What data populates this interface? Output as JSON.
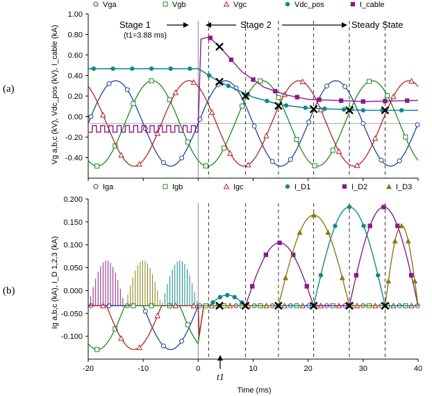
{
  "colors": {
    "phase_a": "#1f3f9e",
    "phase_b": "#1a8a1a",
    "phase_c": "#b02222",
    "vdc": "#0f8a8a",
    "icable": "#8a1a8a",
    "id3": "#8a7a10",
    "grid": "#555555"
  },
  "panels": [
    {
      "label": "(a)",
      "ylabel": "Vg a,b,c (kV), Vdc_pos (kV), I_cable (kA)",
      "annotations": {
        "stage1": "Stage 1",
        "t1_note": "(t1=3.88 ms)",
        "stage2": "Stage 2",
        "steady": "Steady State"
      }
    },
    {
      "label": "(b)",
      "ylabel": "Ig a,b,c (kA), I_D 1,2,3 (kA)",
      "xlabel": "Time (ms)",
      "t1_label": "t1"
    }
  ],
  "chart_data": [
    {
      "type": "line",
      "xlim": [
        -20,
        40
      ],
      "ylim": [
        -0.5,
        1.0
      ],
      "y_ticks": [
        "1.00",
        "0.80",
        "0.60",
        "0.40",
        "0.20",
        "0.00",
        "-0.20",
        "-0.40"
      ],
      "x_ticks": [
        "-20",
        "-10",
        "0",
        "10",
        "20",
        "30",
        "40"
      ],
      "dashed_lines_x": [
        0,
        1.9,
        8.6,
        14.6,
        21.0,
        27.5,
        34.0
      ],
      "legend": "top",
      "series": [
        {
          "name": "Vga",
          "marker": "open-circle",
          "amplitude": 0.39,
          "period_ms": 20,
          "phase_deg": 0
        },
        {
          "name": "Vgb",
          "marker": "open-square",
          "amplitude": 0.39,
          "period_ms": 20,
          "phase_deg": -120
        },
        {
          "name": "Vgc",
          "marker": "open-triangle",
          "amplitude": 0.39,
          "period_ms": 20,
          "phase_deg": 120
        },
        {
          "name": "Vdc_pos",
          "marker": "filled-circle",
          "x": [
            -20,
            0,
            3.88,
            10,
            15,
            20,
            30,
            40
          ],
          "y": [
            0.5,
            0.5,
            0.38,
            0.24,
            0.17,
            0.14,
            0.12,
            0.12
          ]
        },
        {
          "name": "I_cable",
          "marker": "filled-square",
          "x": [
            -20,
            0,
            0.5,
            2,
            3.88,
            8,
            12,
            16,
            20,
            30,
            40
          ],
          "y": [
            -0.05,
            -0.05,
            0.77,
            0.79,
            0.7,
            0.47,
            0.33,
            0.26,
            0.22,
            0.2,
            0.21
          ]
        }
      ],
      "cross_markers": [
        [
          3.88,
          0.7
        ],
        [
          3.88,
          0.38
        ],
        [
          8.6,
          0.25
        ],
        [
          14.6,
          0.16
        ],
        [
          21.0,
          0.13
        ],
        [
          27.5,
          0.12
        ],
        [
          34.0,
          0.12
        ]
      ]
    },
    {
      "type": "line",
      "xlim": [
        -20,
        40
      ],
      "ylim": [
        -0.1,
        0.2
      ],
      "y_ticks": [
        "0.200",
        "0.150",
        "0.100",
        "0.050",
        "0.000",
        "-0.050",
        "-0.100"
      ],
      "x_ticks": [
        "-20",
        "-10",
        "0",
        "10",
        "20",
        "30",
        "40"
      ],
      "xlabel": "Time (ms)",
      "dashed_lines_x": [
        0,
        1.9,
        8.6,
        14.6,
        21.0,
        27.5,
        34.0
      ],
      "legend": "top",
      "series": [
        {
          "name": "Iga",
          "marker": "open-circle"
        },
        {
          "name": "Igb",
          "marker": "open-square"
        },
        {
          "name": "Igc",
          "marker": "open-triangle"
        },
        {
          "name": "I_D1",
          "marker": "filled-circle",
          "pulses": [
            {
              "start": 2.0,
              "end": 8.6,
              "peak": 0.02
            },
            {
              "start": 21.0,
              "end": 34.0,
              "peak": 0.185
            }
          ]
        },
        {
          "name": "I_D2",
          "marker": "filled-square",
          "pulses": [
            {
              "start": 8.6,
              "end": 21.0,
              "peak": 0.118
            },
            {
              "start": 27.5,
              "end": 40,
              "peak": 0.185
            }
          ]
        },
        {
          "name": "I_D3",
          "marker": "filled-triangle",
          "pulses": [
            {
              "start": 14.6,
              "end": 27.5,
              "peak": 0.17
            },
            {
              "start": 34.0,
              "end": 40,
              "peak": 0.15
            }
          ]
        }
      ],
      "cross_markers": [
        [
          3.88,
          0.0
        ],
        [
          8.6,
          0.0
        ],
        [
          14.6,
          0.0
        ],
        [
          21.0,
          0.0
        ],
        [
          27.5,
          0.0
        ],
        [
          34.0,
          0.0
        ]
      ],
      "t1_marker_x": 3.88
    }
  ]
}
